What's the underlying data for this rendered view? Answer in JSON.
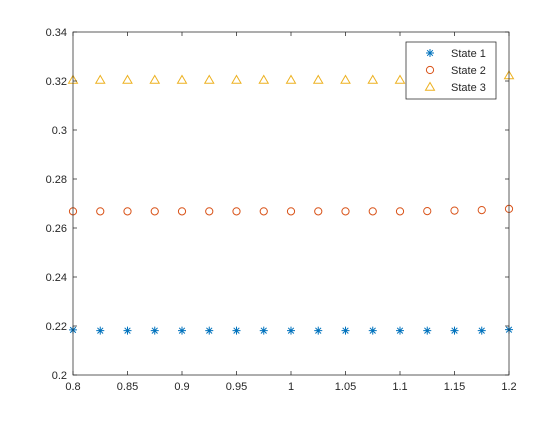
{
  "chart_data": {
    "type": "scatter",
    "x": [
      0.8,
      0.825,
      0.85,
      0.875,
      0.9,
      0.925,
      0.95,
      0.975,
      1.0,
      1.025,
      1.05,
      1.075,
      1.1,
      1.125,
      1.15,
      1.175,
      1.2
    ],
    "series": [
      {
        "name": "State 1",
        "marker": "asterisk",
        "color": "#0072bd",
        "values": [
          0.2184,
          0.2181,
          0.2181,
          0.2181,
          0.2181,
          0.2181,
          0.2181,
          0.2181,
          0.2181,
          0.2181,
          0.2181,
          0.2181,
          0.2181,
          0.2181,
          0.2181,
          0.2181,
          0.2185
        ]
      },
      {
        "name": "State 2",
        "marker": "circle",
        "color": "#d95319",
        "values": [
          0.2668,
          0.2668,
          0.2668,
          0.2668,
          0.2668,
          0.2668,
          0.2668,
          0.2668,
          0.2668,
          0.2668,
          0.2668,
          0.2668,
          0.2668,
          0.2669,
          0.2671,
          0.2673,
          0.2678
        ]
      },
      {
        "name": "State 3",
        "marker": "triangle",
        "color": "#edb120",
        "values": [
          0.3204,
          0.3204,
          0.3204,
          0.3204,
          0.3204,
          0.3204,
          0.3204,
          0.3204,
          0.3204,
          0.3204,
          0.3204,
          0.3204,
          0.3204,
          0.3204,
          0.3204,
          0.3206,
          0.3222
        ]
      }
    ],
    "title": "",
    "xlabel": "",
    "ylabel": "",
    "xlim": [
      0.8,
      1.2
    ],
    "ylim": [
      0.2,
      0.34
    ],
    "xticks": [
      "0.8",
      "0.85",
      "0.9",
      "0.95",
      "1",
      "1.05",
      "1.1",
      "1.15",
      "1.2"
    ],
    "yticks": [
      "0.2",
      "0.22",
      "0.24",
      "0.26",
      "0.28",
      "0.3",
      "0.32",
      "0.34"
    ],
    "grid": false,
    "legend_position": "top-right"
  }
}
